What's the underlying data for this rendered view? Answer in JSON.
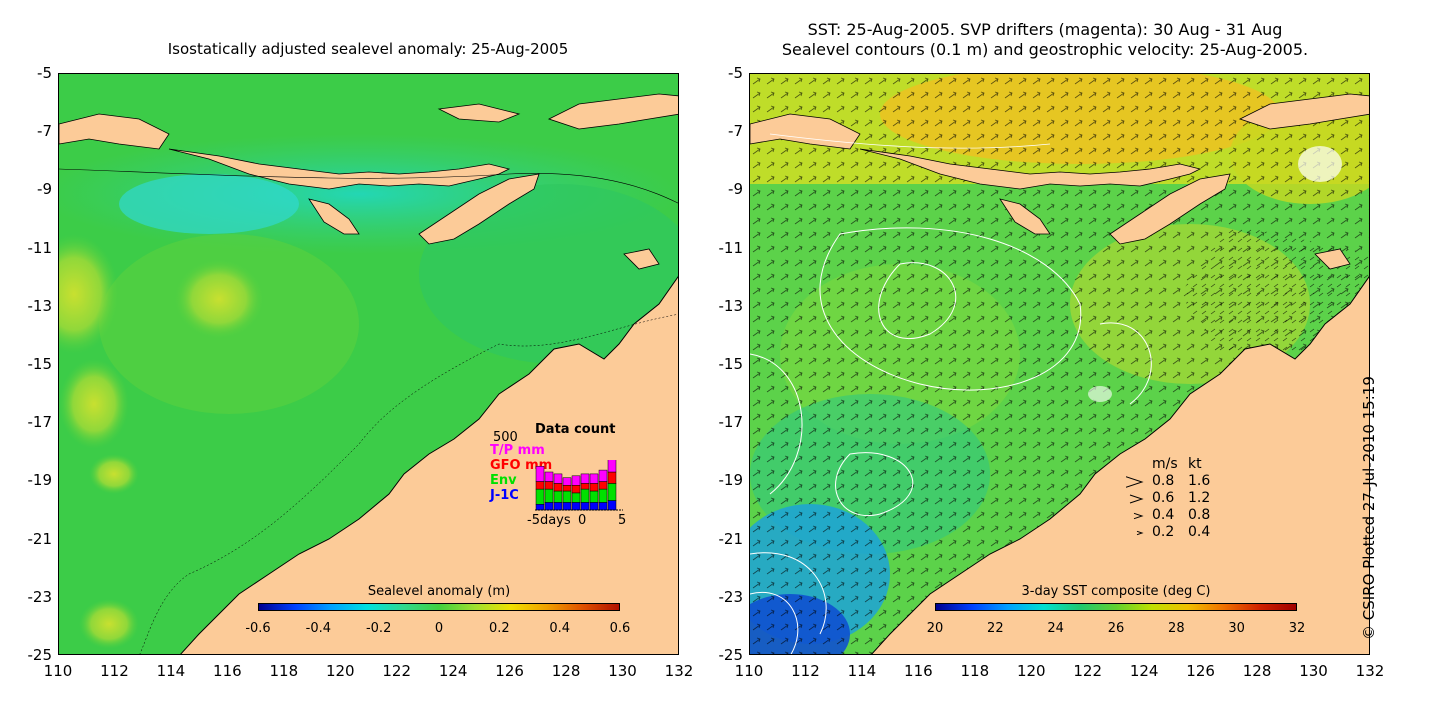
{
  "left_panel": {
    "title": "Isostatically adjusted sealevel anomaly: 25-Aug-2005",
    "colorbar": {
      "title": "Sealevel anomaly (m)",
      "ticks": [
        "-0.6",
        "-0.4",
        "-0.2",
        "0",
        "0.2",
        "0.4",
        "0.6"
      ]
    },
    "inset": {
      "title": "Data count",
      "max_label": "500",
      "series": [
        {
          "label": "T/P mm",
          "color": "#ff00ff"
        },
        {
          "label": "GFO mm",
          "color": "#ff0000"
        },
        {
          "label": "Env",
          "color": "#00e000"
        },
        {
          "label": "J-1C",
          "color": "#0000ff"
        }
      ],
      "x_labels": [
        "-5days",
        "0",
        "5"
      ],
      "bars": [
        {
          "jc": 3,
          "env": 8,
          "gfo": 4,
          "tp": 8
        },
        {
          "jc": 4,
          "env": 7,
          "gfo": 4,
          "tp": 5
        },
        {
          "jc": 4,
          "env": 6,
          "gfo": 4,
          "tp": 5
        },
        {
          "jc": 4,
          "env": 6,
          "gfo": 3,
          "tp": 4
        },
        {
          "jc": 4,
          "env": 5,
          "gfo": 4,
          "tp": 5
        },
        {
          "jc": 4,
          "env": 7,
          "gfo": 3,
          "tp": 5
        },
        {
          "jc": 4,
          "env": 6,
          "gfo": 4,
          "tp": 5
        },
        {
          "jc": 4,
          "env": 7,
          "gfo": 4,
          "tp": 6
        },
        {
          "jc": 5,
          "env": 9,
          "gfo": 6,
          "tp": 8
        }
      ]
    }
  },
  "right_panel": {
    "title_line1": "SST: 25-Aug-2005. SVP drifters (magenta): 30 Aug - 31 Aug",
    "title_line2": "Sealevel contours (0.1 m) and geostrophic velocity: 25-Aug-2005.",
    "colorbar": {
      "title": "3-day SST composite (deg C)",
      "ticks": [
        "20",
        "22",
        "24",
        "26",
        "28",
        "30",
        "32"
      ]
    },
    "velocity_legend": {
      "header_ms": "m/s",
      "header_kt": "kt",
      "rows": [
        {
          "ms": "0.8",
          "kt": "1.6"
        },
        {
          "ms": "0.6",
          "kt": "1.2"
        },
        {
          "ms": "0.4",
          "kt": "0.8"
        },
        {
          "ms": "0.2",
          "kt": "0.4"
        }
      ]
    }
  },
  "axes": {
    "lat_labels": [
      "-5",
      "-7",
      "-9",
      "-11",
      "-13",
      "-15",
      "-17",
      "-19",
      "-21",
      "-23",
      "-25"
    ],
    "lon_labels": [
      "110",
      "112",
      "114",
      "116",
      "118",
      "120",
      "122",
      "124",
      "126",
      "128",
      "130",
      "132"
    ]
  },
  "credit": "© CSIRO Plotted 27-Jul-2010 15:19",
  "colors": {
    "land": "#fccb98",
    "ocean_sla": "#2ecc4a",
    "ocean_sst": "#4dd24a"
  }
}
